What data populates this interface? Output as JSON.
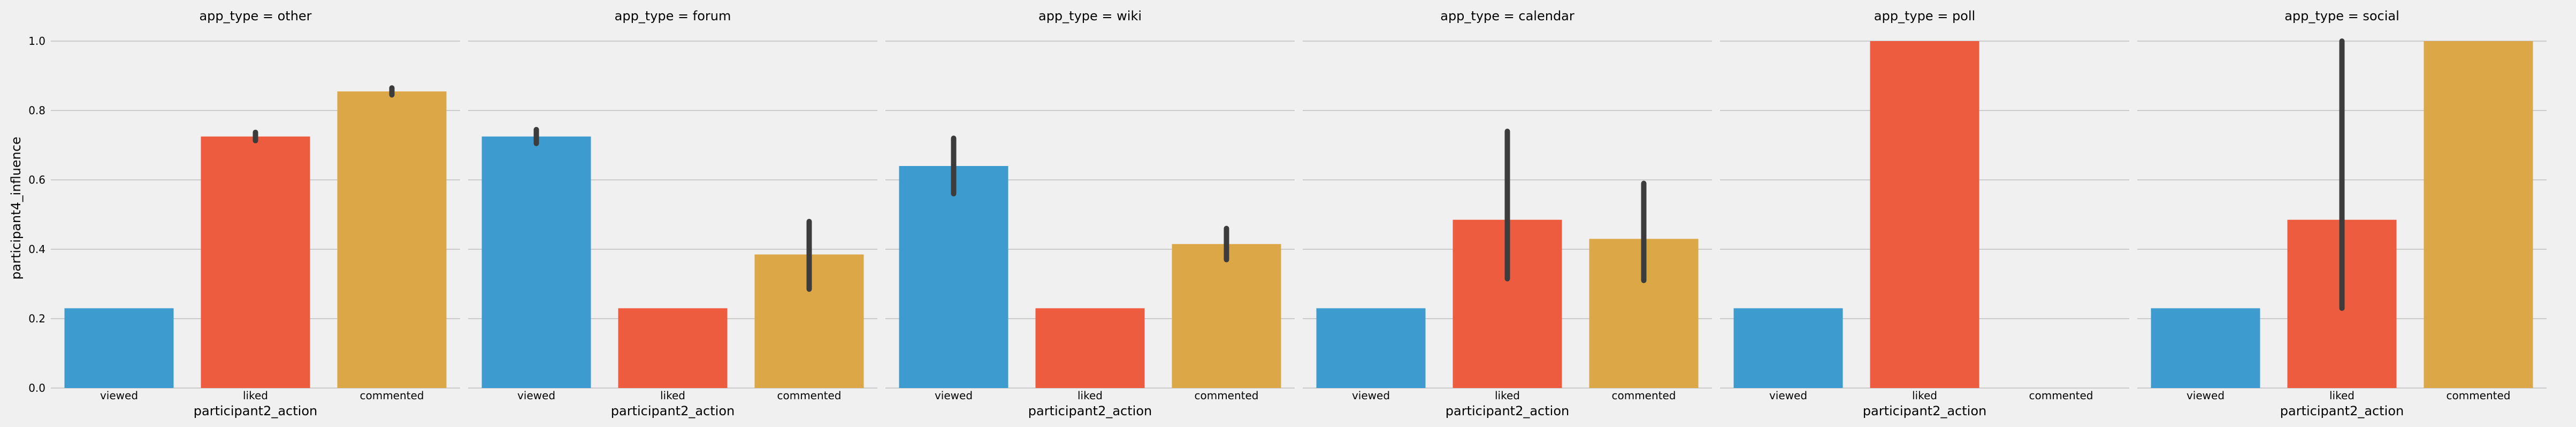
{
  "chart_data": {
    "type": "bar",
    "layout": "facet-columns",
    "ylabel": "participant4_influence",
    "xlabel": "participant2_action",
    "ylim": [
      0,
      1.0
    ],
    "yticks": [
      "0.0",
      "0.2",
      "0.4",
      "0.6",
      "0.8",
      "1.0"
    ],
    "grid": true,
    "categories": [
      "viewed",
      "liked",
      "commented"
    ],
    "colors": [
      "#3d9bd0",
      "#ed5c3e",
      "#dca746"
    ],
    "errorbar_color": "#3c3c3c",
    "panels": [
      {
        "title": "app_type = other",
        "values": [
          0.23,
          0.725,
          0.855
        ],
        "errors": [
          null,
          [
            0.713,
            0.737
          ],
          [
            0.845,
            0.865
          ]
        ]
      },
      {
        "title": "app_type = forum",
        "values": [
          0.725,
          0.23,
          0.385
        ],
        "errors": [
          [
            0.705,
            0.745
          ],
          null,
          [
            0.285,
            0.48
          ]
        ]
      },
      {
        "title": "app_type = wiki",
        "values": [
          0.64,
          0.23,
          0.415
        ],
        "errors": [
          [
            0.56,
            0.72
          ],
          null,
          [
            0.37,
            0.46
          ]
        ]
      },
      {
        "title": "app_type = calendar",
        "values": [
          0.23,
          0.485,
          0.43
        ],
        "errors": [
          null,
          [
            0.315,
            0.74
          ],
          [
            0.31,
            0.59
          ]
        ]
      },
      {
        "title": "app_type = poll",
        "values": [
          0.23,
          1.0,
          null
        ],
        "errors": [
          null,
          null,
          null
        ]
      },
      {
        "title": "app_type = social",
        "values": [
          0.23,
          0.485,
          1.0
        ],
        "errors": [
          null,
          [
            0.23,
            1.0
          ],
          null
        ]
      }
    ]
  }
}
